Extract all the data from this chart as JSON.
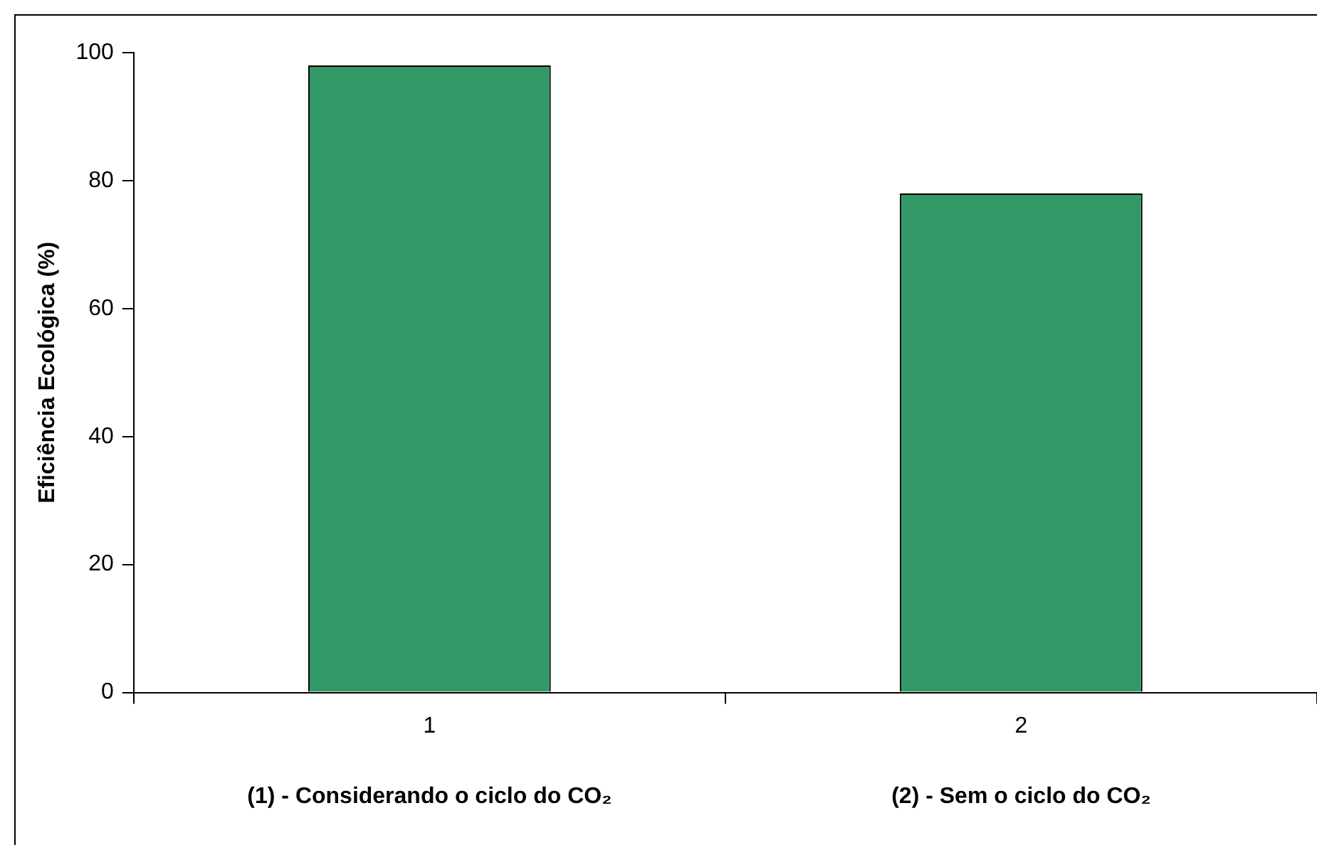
{
  "chart_data": {
    "type": "bar",
    "ylabel": "Eficiência Ecológica (%)",
    "categories": [
      "1",
      "2"
    ],
    "values": [
      98,
      78
    ],
    "color": "#339966",
    "ylim": [
      0,
      100
    ],
    "yticks": [
      0,
      20,
      40,
      60,
      80,
      100
    ],
    "grid": false,
    "legend": false,
    "annotations": [
      "(1) - Considerando o ciclo do CO₂",
      "(2) - Sem o ciclo do CO₂"
    ]
  }
}
